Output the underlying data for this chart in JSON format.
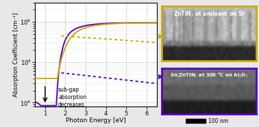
{
  "xlabel": "Photon Energy [eV]",
  "ylabel": "Absorption Coefficient [cm⁻¹]",
  "xlim": [
    0.5,
    6.5
  ],
  "ylim_log": [
    8000,
    3000000
  ],
  "background_color": "#e8e8e8",
  "plot_bg_color": "#ffffff",
  "grid_color": "#bbbbbb",
  "yellow_color": "#ccaa00",
  "purple_color": "#5500cc",
  "annotation_text": "sub-gap\nabsorption\ndecreases",
  "img1_label": "ZnTiN$_2$ at ambient on Si",
  "img2_label": "Sn:ZnTiN$_2$ at 300 °C on Al$_2$O$_3$",
  "scalebar_label": "100 nm",
  "img1_border_color": "#ccaa00",
  "img2_border_color": "#5500cc"
}
